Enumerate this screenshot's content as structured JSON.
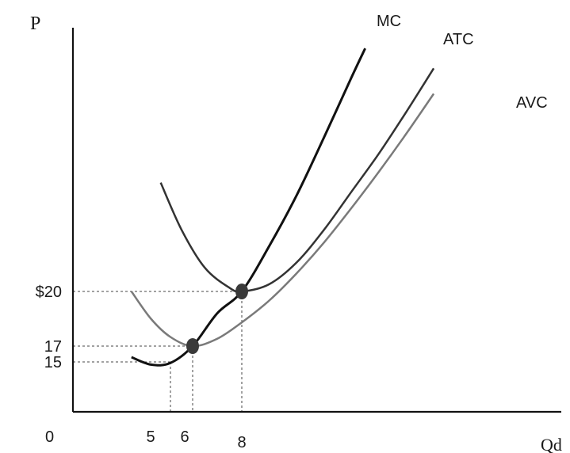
{
  "chart_data": {
    "type": "line",
    "title": "",
    "xlabel": "Qd",
    "ylabel": "P",
    "origin_label": "0",
    "x_ticks": [
      5,
      6,
      8
    ],
    "x_tick_labels": [
      "5",
      "6",
      "8"
    ],
    "y_ticks": [
      15,
      17,
      20
    ],
    "y_tick_labels": [
      "15",
      "17",
      "$20"
    ],
    "grid": false,
    "series": [
      {
        "name": "MC",
        "color": "#111111",
        "x": [
          3.0,
          4.0,
          5.0,
          6.0,
          7.0,
          8.0,
          9.0,
          10.0,
          11.0,
          12.0,
          12.5
        ],
        "y": [
          15.6,
          14.2,
          14.7,
          17.0,
          18.8,
          20.0,
          22.5,
          25.3,
          28.5,
          31.8,
          33.4
        ]
      },
      {
        "name": "ATC",
        "color": "#333333",
        "x": [
          4.5,
          5.5,
          6.5,
          7.5,
          8.0,
          9.0,
          10.0,
          11.0,
          12.0,
          13.0,
          14.0,
          15.0
        ],
        "y": [
          26.0,
          23.4,
          21.3,
          20.2,
          20.0,
          20.4,
          21.6,
          23.4,
          25.5,
          27.6,
          29.9,
          32.3
        ]
      },
      {
        "name": "AVC",
        "color": "#7a7a7a",
        "x": [
          3.0,
          4.0,
          5.0,
          6.0,
          7.0,
          8.0,
          9.0,
          10.0,
          11.0,
          12.0,
          13.0,
          14.0,
          15.0
        ],
        "y": [
          20.0,
          18.5,
          17.5,
          17.0,
          17.4,
          18.3,
          19.5,
          21.0,
          22.7,
          24.6,
          26.6,
          28.7,
          30.9
        ]
      }
    ],
    "points": [
      {
        "x": 6,
        "y": 17
      },
      {
        "x": 8,
        "y": 20
      }
    ],
    "guides": [
      {
        "x": 5,
        "y": 15
      },
      {
        "x": 6,
        "y": 17
      },
      {
        "x": 8,
        "y": 20
      }
    ]
  }
}
